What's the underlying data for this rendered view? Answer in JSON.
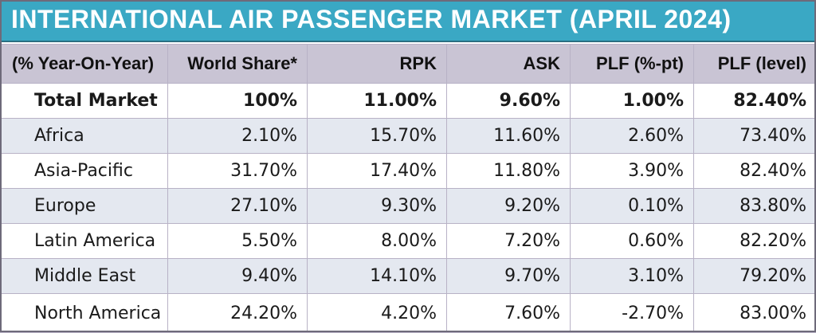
{
  "title": "INTERNATIONAL AIR PASSENGER MARKET (APRIL 2024)",
  "headers": [
    "(% Year-On-Year)",
    "World Share*",
    "RPK",
    "ASK",
    "PLF (%-pt)",
    "PLF (level)"
  ],
  "rows": [
    [
      "Total Market",
      "100%",
      "11.00%",
      "9.60%",
      "1.00%",
      "82.40%"
    ],
    [
      "Africa",
      "2.10%",
      "15.70%",
      "11.60%",
      "2.60%",
      "73.40%"
    ],
    [
      "Asia-Pacific",
      "31.70%",
      "17.40%",
      "11.80%",
      "3.90%",
      "82.40%"
    ],
    [
      "Europe",
      "27.10%",
      "9.30%",
      "9.20%",
      "0.10%",
      "83.80%"
    ],
    [
      "Latin America",
      "5.50%",
      "8.00%",
      "7.20%",
      "0.60%",
      "82.20%"
    ],
    [
      "Middle East",
      "9.40%",
      "14.10%",
      "9.70%",
      "3.10%",
      "79.20%"
    ],
    [
      "North America",
      "24.20%",
      "4.20%",
      "7.60%",
      "-2.70%",
      "83.00%"
    ]
  ],
  "colors": {
    "title_bar": "#3aa8c4",
    "header_row": "#c9c4d4",
    "stripe_row": "#e4e8f0"
  }
}
